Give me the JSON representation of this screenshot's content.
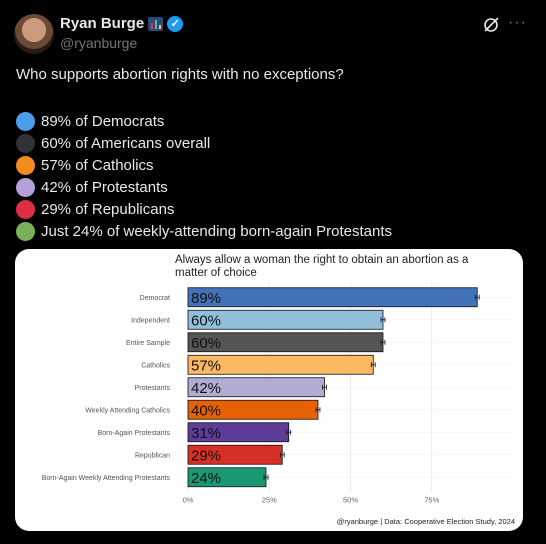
{
  "author": {
    "display_name": "Ryan Burge",
    "handle": "@ryanburge",
    "icons": [
      "bar-chart-emoji",
      "verified-badge-icon",
      "grok-icon",
      "more-icon"
    ]
  },
  "post": {
    "question": "Who supports abortion rights with no exceptions?",
    "stats": [
      {
        "text": "89% of Democrats",
        "color": "#4a9fe8"
      },
      {
        "text": "60% of Americans overall",
        "color": "#2f3336"
      },
      {
        "text": "57% of Catholics",
        "color": "#f28c1f"
      },
      {
        "text": "42% of Protestants",
        "color": "#b79fdc"
      },
      {
        "text": "29% of Republicans",
        "color": "#dd2e44"
      },
      {
        "text": "Just 24% of weekly-attending born-again Protestants",
        "color": "#78b159"
      }
    ]
  },
  "chart_data": {
    "type": "bar",
    "orientation": "horizontal",
    "title": "Always allow a woman the right to obtain an abortion as a matter of choice",
    "categories": [
      "Democrat",
      "Independent",
      "Entire Sample",
      "Catholics",
      "Protestants",
      "Weekly Attending Catholics",
      "Born-Again Protestants",
      "Republican",
      "Born-Again Weekly Attending Protestants"
    ],
    "values": [
      89,
      60,
      60,
      57,
      42,
      40,
      31,
      29,
      24
    ],
    "value_labels": [
      "89%",
      "60%",
      "60%",
      "57%",
      "42%",
      "40%",
      "31%",
      "29%",
      "24%"
    ],
    "colors": [
      "#4472b8",
      "#91bfdb",
      "#555555",
      "#fdb863",
      "#b2abd2",
      "#e66101",
      "#5e3c99",
      "#d73027",
      "#1a9873"
    ],
    "xlim": [
      0,
      100
    ],
    "xticks": [
      0,
      25,
      50,
      75
    ],
    "xtick_labels": [
      "0%",
      "25%",
      "50%",
      "75%"
    ],
    "error_bars": true,
    "grid": true,
    "caption": "@ryanburge | Data: Cooperative Election Study, 2024"
  }
}
